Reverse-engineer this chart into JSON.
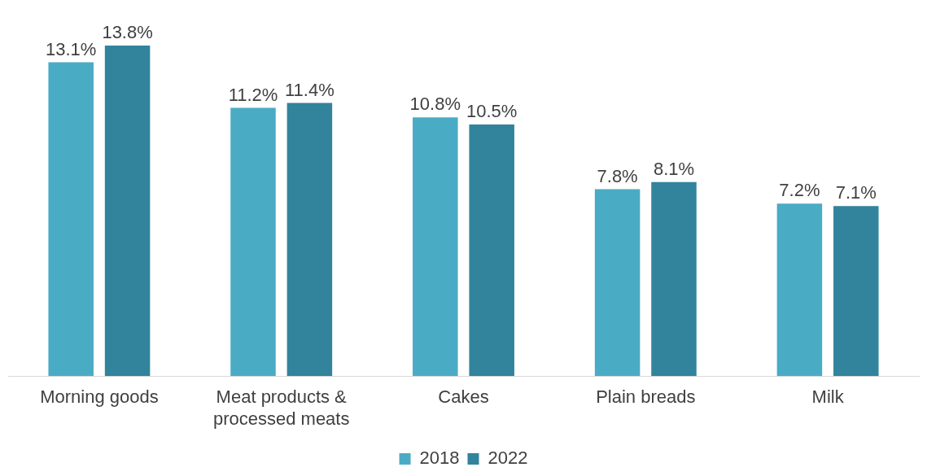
{
  "chart_data": {
    "type": "bar",
    "categories": [
      "Morning goods",
      "Meat products & processed meats",
      "Cakes",
      "Plain breads",
      "Milk"
    ],
    "series": [
      {
        "name": "2018",
        "color": "#4aabc5",
        "values": [
          13.1,
          11.2,
          10.8,
          7.8,
          7.2
        ],
        "value_labels": [
          "13.1%",
          "11.2%",
          "10.8%",
          "7.8%",
          "7.2%"
        ]
      },
      {
        "name": "2022",
        "color": "#31849b",
        "values": [
          13.8,
          11.4,
          10.5,
          8.1,
          7.1
        ],
        "value_labels": [
          "13.8%",
          "11.4%",
          "10.5%",
          "8.1%",
          "7.1%"
        ]
      }
    ],
    "legend": "bottom",
    "grid": false,
    "tick_labels": "x"
  }
}
